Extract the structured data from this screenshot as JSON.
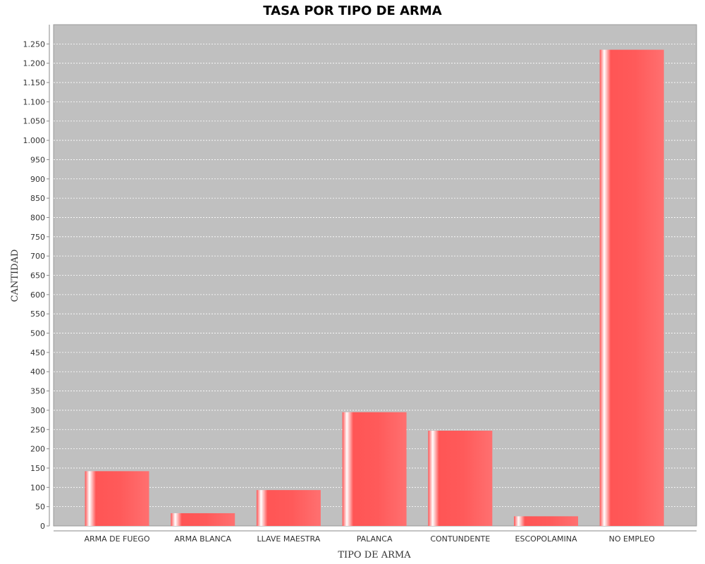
{
  "chart_data": {
    "type": "bar",
    "title": "TASA POR TIPO DE ARMA",
    "xlabel": "TIPO DE ARMA",
    "ylabel": "CANTIDAD",
    "categories": [
      "ARMA DE FUEGO",
      "ARMA BLANCA",
      "LLAVE MAESTRA",
      "PALANCA",
      "CONTUNDENTE",
      "ESCOPOLAMINA",
      "NO EMPLEO"
    ],
    "values": [
      142,
      33,
      93,
      295,
      247,
      25,
      1235
    ],
    "ylim": [
      0,
      1300
    ],
    "yticks": [
      0,
      50,
      100,
      150,
      200,
      250,
      300,
      350,
      400,
      450,
      500,
      550,
      600,
      650,
      700,
      750,
      800,
      850,
      900,
      950,
      1000,
      1050,
      1100,
      1150,
      1200,
      1250
    ],
    "ytick_labels": [
      "0",
      "50",
      "100",
      "150",
      "200",
      "250",
      "300",
      "350",
      "400",
      "450",
      "500",
      "550",
      "600",
      "650",
      "700",
      "750",
      "800",
      "850",
      "900",
      "950",
      "1.000",
      "1.050",
      "1.100",
      "1.150",
      "1.200",
      "1.250"
    ],
    "grid": true,
    "legend": "none",
    "colors": {
      "bar": "#ff5555",
      "bar_highlight": "#ffffff",
      "plot_background": "#c0c0c0",
      "gridline": "#ffffff"
    }
  }
}
